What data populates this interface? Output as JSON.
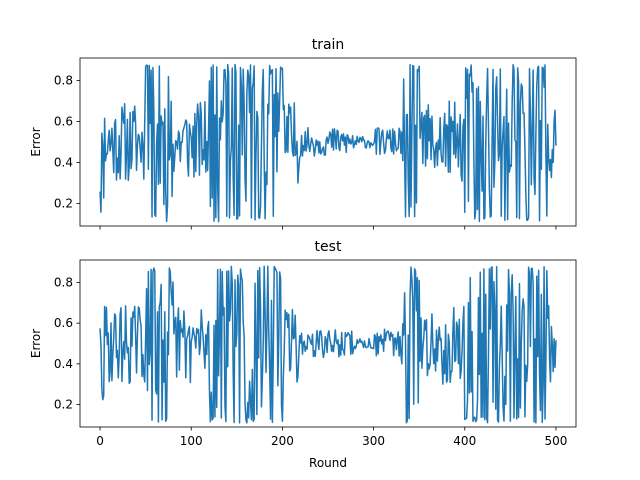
{
  "chart_data": [
    {
      "type": "line",
      "title": "train",
      "xlabel": "",
      "ylabel": "Error",
      "xlim": [
        -22,
        522
      ],
      "ylim": [
        0.09,
        0.91
      ],
      "xticks": [
        0,
        100,
        200,
        300,
        400,
        500
      ],
      "xticklabels": [],
      "yticks": [
        0.2,
        0.4,
        0.6,
        0.8
      ],
      "yticklabels": [
        "0.2",
        "0.4",
        "0.6",
        "0.8"
      ],
      "grid": false,
      "color": "#1f77b4",
      "seed": 11,
      "x_range": [
        0,
        500
      ],
      "y_range": [
        0.11,
        0.88
      ]
    },
    {
      "type": "line",
      "title": "test",
      "xlabel": "Round",
      "ylabel": "Error",
      "xlim": [
        -22,
        522
      ],
      "ylim": [
        0.09,
        0.91
      ],
      "xticks": [
        0,
        100,
        200,
        300,
        400,
        500
      ],
      "xticklabels": [
        "0",
        "100",
        "200",
        "300",
        "400",
        "500"
      ],
      "yticks": [
        0.2,
        0.4,
        0.6,
        0.8
      ],
      "yticklabels": [
        "0.2",
        "0.4",
        "0.6",
        "0.8"
      ],
      "grid": false,
      "color": "#1f77b4",
      "seed": 29,
      "x_range": [
        0,
        500
      ],
      "y_range": [
        0.11,
        0.88
      ]
    }
  ]
}
